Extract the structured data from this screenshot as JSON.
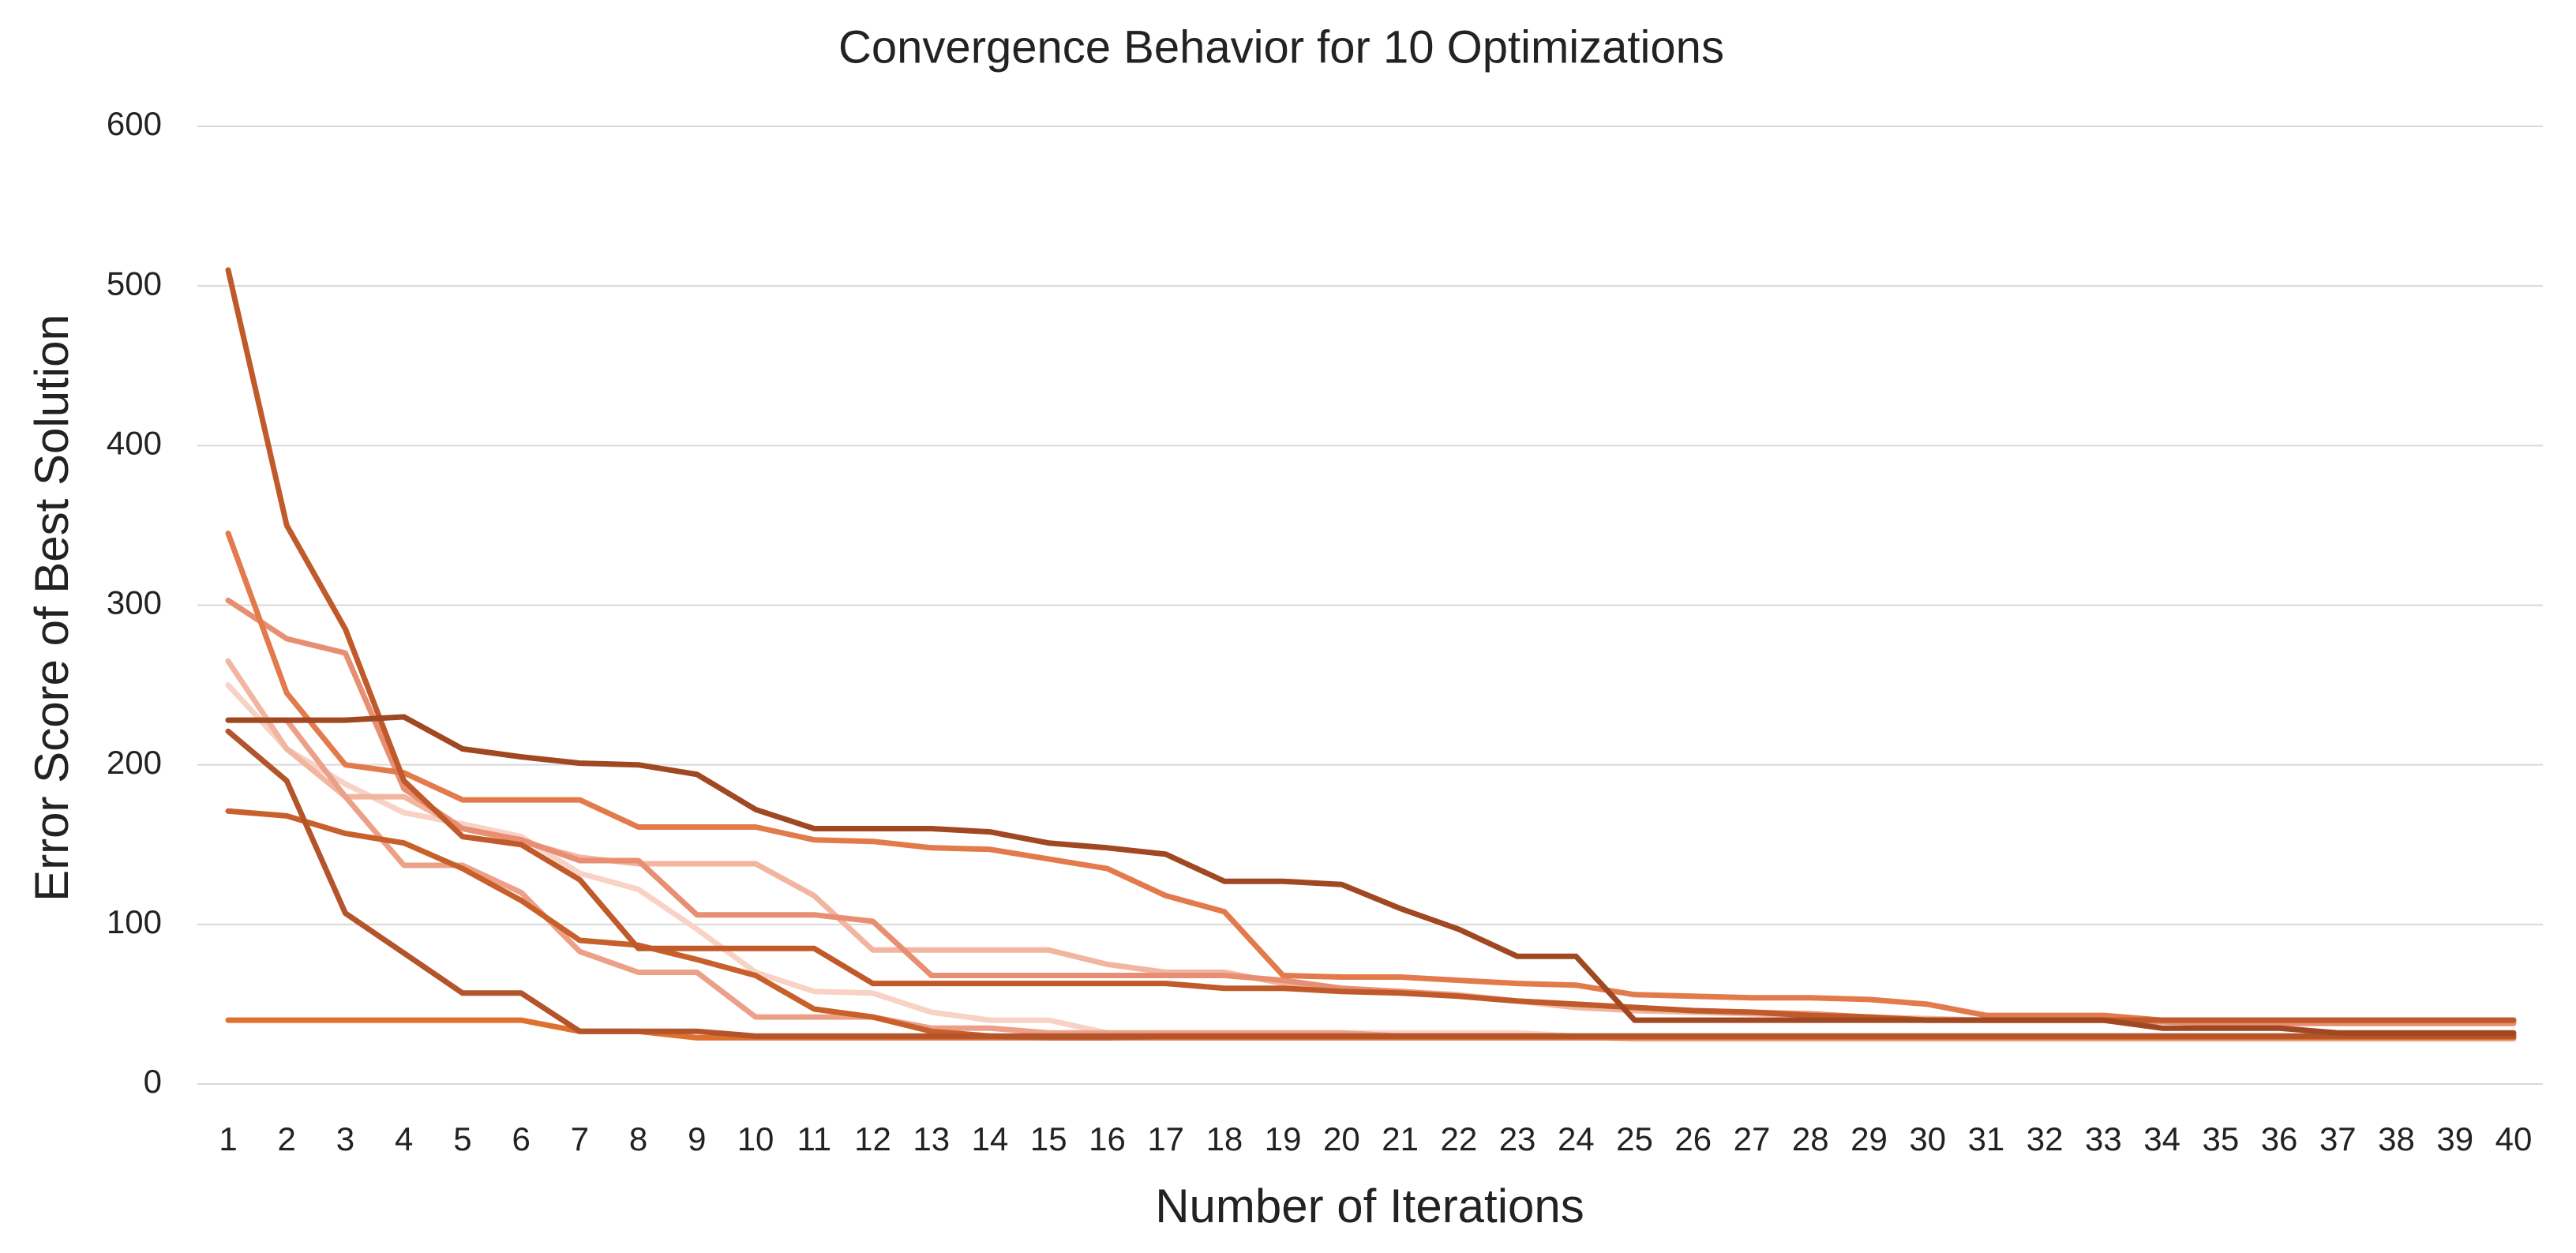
{
  "chart_data": {
    "type": "line",
    "title": "Convergence Behavior for 10 Optimizations",
    "x_label": "Number of Iterations",
    "y_label": "Error Score of Best Solution",
    "categories": [
      1,
      2,
      3,
      4,
      5,
      6,
      7,
      8,
      9,
      10,
      11,
      12,
      13,
      14,
      15,
      16,
      17,
      18,
      19,
      20,
      21,
      22,
      23,
      24,
      25,
      26,
      27,
      28,
      29,
      30,
      31,
      32,
      33,
      34,
      35,
      36,
      37,
      38,
      39,
      40
    ],
    "ylim": [
      0,
      600
    ],
    "yticks": [
      0,
      100,
      200,
      300,
      400,
      500,
      600
    ],
    "grid": true,
    "series": [
      {
        "color": "#f8d2c4",
        "values": [
          250,
          210,
          188,
          170,
          163,
          155,
          132,
          122,
          97,
          70,
          58,
          57,
          45,
          40,
          40,
          32,
          32,
          32,
          32,
          32,
          32,
          32,
          32,
          30,
          28,
          28,
          28,
          28,
          28,
          28,
          28,
          28,
          28,
          28,
          28,
          28,
          28,
          28,
          28,
          28
        ]
      },
      {
        "color": "#f2b6a0",
        "values": [
          265,
          210,
          180,
          180,
          160,
          152,
          142,
          138,
          138,
          138,
          118,
          84,
          84,
          84,
          84,
          75,
          70,
          70,
          63,
          60,
          58,
          56,
          52,
          48,
          46,
          45,
          44,
          43,
          42,
          41,
          40,
          40,
          40,
          40,
          40,
          40,
          40,
          40,
          40,
          40
        ]
      },
      {
        "color": "#eda088",
        "values": [
          228,
          228,
          180,
          137,
          137,
          120,
          83,
          70,
          70,
          42,
          42,
          42,
          35,
          35,
          32,
          32,
          32,
          32,
          32,
          32,
          30,
          30,
          30,
          30,
          30,
          30,
          30,
          30,
          30,
          30,
          30,
          30,
          30,
          30,
          30,
          30,
          30,
          30,
          30,
          30
        ]
      },
      {
        "color": "#e88e72",
        "values": [
          303,
          279,
          270,
          185,
          160,
          153,
          140,
          140,
          106,
          106,
          106,
          102,
          68,
          68,
          68,
          68,
          68,
          68,
          65,
          60,
          58,
          55,
          52,
          50,
          48,
          46,
          45,
          44,
          42,
          40,
          40,
          40,
          40,
          39,
          38,
          38,
          38,
          38,
          38,
          38
        ]
      },
      {
        "color": "#e27a4c",
        "values": [
          345,
          245,
          200,
          195,
          178,
          178,
          178,
          161,
          161,
          161,
          153,
          152,
          148,
          147,
          141,
          135,
          118,
          108,
          68,
          67,
          67,
          65,
          63,
          62,
          56,
          55,
          54,
          54,
          53,
          50,
          43,
          43,
          43,
          40,
          40,
          40,
          40,
          40,
          40,
          40
        ]
      },
      {
        "color": "#e0702e",
        "values": [
          40,
          40,
          40,
          40,
          40,
          40,
          33,
          33,
          29,
          29,
          29,
          29,
          29,
          29,
          29,
          29,
          29,
          29,
          29,
          29,
          29,
          29,
          29,
          29,
          29,
          29,
          29,
          29,
          29,
          29,
          29,
          29,
          29,
          29,
          29,
          29,
          29,
          29,
          29,
          29
        ]
      },
      {
        "color": "#c8602c",
        "values": [
          171,
          168,
          157,
          151,
          135,
          115,
          90,
          87,
          78,
          68,
          47,
          42,
          33,
          30,
          29,
          29,
          30,
          30,
          30,
          30,
          30,
          30,
          30,
          30,
          30,
          30,
          30,
          30,
          30,
          30,
          30,
          30,
          30,
          30,
          30,
          30,
          30,
          30,
          30,
          30
        ]
      },
      {
        "color": "#c05a2a",
        "values": [
          510,
          350,
          285,
          190,
          155,
          150,
          128,
          85,
          85,
          85,
          85,
          63,
          63,
          63,
          63,
          63,
          63,
          60,
          60,
          58,
          57,
          55,
          52,
          50,
          48,
          46,
          45,
          43,
          42,
          40,
          40,
          40,
          40,
          40,
          40,
          40,
          40,
          40,
          40,
          40
        ]
      },
      {
        "color": "#b3542a",
        "values": [
          221,
          190,
          107,
          82,
          57,
          57,
          33,
          33,
          33,
          30,
          30,
          30,
          30,
          30,
          30,
          30,
          30,
          30,
          30,
          30,
          30,
          30,
          30,
          30,
          30,
          30,
          30,
          30,
          30,
          30,
          30,
          30,
          30,
          30,
          30,
          30,
          30,
          30,
          30,
          30
        ]
      },
      {
        "color": "#a04822",
        "values": [
          228,
          228,
          228,
          230,
          210,
          205,
          201,
          200,
          194,
          172,
          160,
          160,
          160,
          158,
          151,
          148,
          144,
          127,
          127,
          125,
          110,
          97,
          80,
          80,
          40,
          40,
          40,
          40,
          40,
          40,
          40,
          40,
          40,
          35,
          35,
          35,
          32,
          32,
          32,
          32
        ]
      }
    ]
  }
}
